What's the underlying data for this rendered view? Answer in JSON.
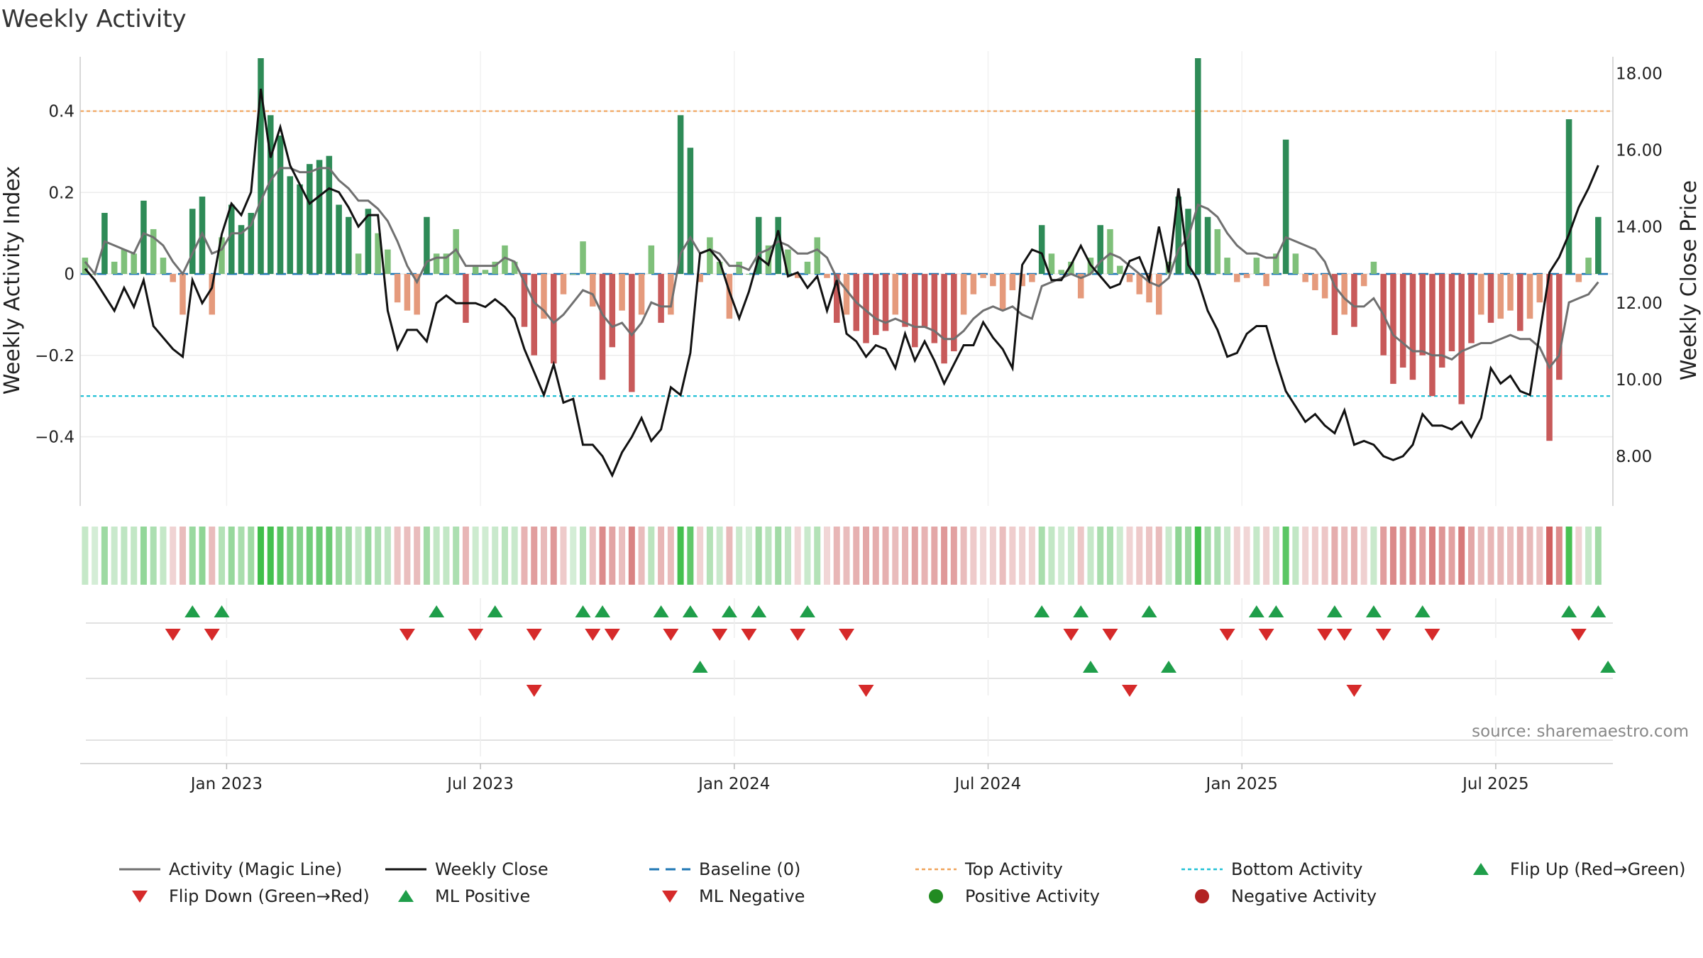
{
  "chart_data": {
    "type": "bar",
    "title": "Weekly Activity",
    "ylabel_left": "Weekly Activity Index",
    "ylabel_right": "Weekly Close Price",
    "source": "source: sharemaestro.com",
    "ylim_left": [
      -0.57,
      0.53
    ],
    "ylim_right": [
      6.7,
      18.4
    ],
    "yticks_left": [
      {
        "v": 0.4,
        "label": "0.4"
      },
      {
        "v": 0.2,
        "label": "0.2"
      },
      {
        "v": 0,
        "label": "0"
      },
      {
        "v": -0.2,
        "label": "−0.2"
      },
      {
        "v": -0.4,
        "label": "−0.4"
      }
    ],
    "yticks_right": [
      {
        "v": 18,
        "label": "18.00"
      },
      {
        "v": 16,
        "label": "16.00"
      },
      {
        "v": 14,
        "label": "14.00"
      },
      {
        "v": 12,
        "label": "12.00"
      },
      {
        "v": 10,
        "label": "10.00"
      },
      {
        "v": 8,
        "label": "8.00"
      }
    ],
    "week_range": [
      -0.5,
      156.5
    ],
    "xticks": [
      {
        "w": 14.5,
        "label": "Jan 2023"
      },
      {
        "w": 40.5,
        "label": "Jul 2023"
      },
      {
        "w": 66.5,
        "label": "Jan 2024"
      },
      {
        "w": 92.5,
        "label": "Jul 2024"
      },
      {
        "w": 118.5,
        "label": "Jan 2025"
      },
      {
        "w": 144.5,
        "label": "Jul 2025"
      }
    ],
    "top_activity": 0.4,
    "bottom_activity": -0.3,
    "baseline": 0,
    "activity": [
      0.04,
      0,
      0.15,
      0.03,
      0.06,
      0.05,
      0.18,
      0.11,
      0.04,
      -0.02,
      -0.1,
      0.16,
      0.19,
      -0.1,
      0.09,
      0.17,
      0.12,
      0.15,
      0.53,
      0.39,
      0.34,
      0.24,
      0.22,
      0.27,
      0.28,
      0.29,
      0.17,
      0.14,
      0.05,
      0.16,
      0.1,
      0.06,
      -0.07,
      -0.09,
      -0.1,
      0.14,
      0.05,
      0.05,
      0.11,
      -0.12,
      0.02,
      0.01,
      0.03,
      0.07,
      0.03,
      -0.13,
      -0.2,
      -0.11,
      -0.22,
      -0.05,
      0,
      0.08,
      -0.08,
      -0.26,
      -0.18,
      -0.09,
      -0.29,
      -0.1,
      0.07,
      -0.12,
      -0.1,
      0.39,
      0.31,
      -0.02,
      0.09,
      0.03,
      -0.11,
      0.03,
      0,
      0.14,
      0.07,
      0.14,
      0.06,
      -0.01,
      0.03,
      0.09,
      -0.01,
      -0.12,
      -0.1,
      -0.14,
      -0.17,
      -0.15,
      -0.14,
      -0.1,
      -0.13,
      -0.18,
      -0.13,
      -0.17,
      -0.22,
      -0.19,
      -0.1,
      -0.05,
      -0.01,
      -0.03,
      -0.09,
      -0.04,
      -0.03,
      -0.02,
      0.12,
      0.05,
      0.01,
      0.03,
      -0.06,
      0.04,
      0.12,
      0.11,
      0.02,
      -0.02,
      -0.05,
      -0.07,
      -0.1,
      0.03,
      0.19,
      0.16,
      0.53,
      0.14,
      0.11,
      0.04,
      -0.02,
      -0.01,
      0.04,
      -0.03,
      0.05,
      0.33,
      0.05,
      -0.02,
      -0.04,
      -0.06,
      -0.15,
      -0.1,
      -0.13,
      -0.03,
      0.03,
      -0.2,
      -0.27,
      -0.23,
      -0.26,
      -0.2,
      -0.3,
      -0.23,
      -0.19,
      -0.32,
      -0.17,
      -0.1,
      -0.12,
      -0.11,
      -0.09,
      -0.14,
      -0.11,
      -0.07,
      -0.41,
      -0.26,
      0.38,
      -0.02,
      0.04,
      0.14
    ],
    "magic_line": [
      0.03,
      0,
      0.08,
      0.07,
      0.06,
      0.05,
      0.1,
      0.09,
      0.07,
      0.03,
      0,
      0.05,
      0.1,
      0.05,
      0.06,
      0.1,
      0.1,
      0.12,
      0.18,
      0.23,
      0.26,
      0.26,
      0.25,
      0.25,
      0.26,
      0.26,
      0.23,
      0.21,
      0.18,
      0.18,
      0.16,
      0.13,
      0.08,
      0.02,
      -0.02,
      0.03,
      0.04,
      0.04,
      0.06,
      0.02,
      0.02,
      0.02,
      0.02,
      0.04,
      0.03,
      -0.02,
      -0.07,
      -0.09,
      -0.12,
      -0.1,
      -0.07,
      -0.04,
      -0.05,
      -0.1,
      -0.13,
      -0.12,
      -0.15,
      -0.12,
      -0.07,
      -0.08,
      -0.08,
      0.05,
      0.09,
      0.05,
      0.06,
      0.05,
      0.02,
      0.02,
      0.01,
      0.05,
      0.06,
      0.08,
      0.07,
      0.05,
      0.05,
      0.06,
      0.04,
      -0.01,
      -0.04,
      -0.07,
      -0.09,
      -0.11,
      -0.12,
      -0.11,
      -0.12,
      -0.13,
      -0.13,
      -0.14,
      -0.16,
      -0.16,
      -0.14,
      -0.11,
      -0.09,
      -0.08,
      -0.09,
      -0.08,
      -0.1,
      -0.11,
      -0.03,
      -0.02,
      -0.01,
      0,
      -0.01,
      0,
      0.03,
      0.05,
      0.04,
      0.02,
      0,
      -0.02,
      -0.03,
      -0.01,
      0.06,
      0.09,
      0.17,
      0.16,
      0.14,
      0.1,
      0.07,
      0.05,
      0.05,
      0.04,
      0.04,
      0.09,
      0.08,
      0.07,
      0.06,
      0.03,
      -0.03,
      -0.06,
      -0.08,
      -0.08,
      -0.06,
      -0.1,
      -0.15,
      -0.17,
      -0.19,
      -0.19,
      -0.2,
      -0.2,
      -0.21,
      -0.19,
      -0.18,
      -0.17,
      -0.17,
      -0.16,
      -0.15,
      -0.16,
      -0.16,
      -0.18,
      -0.23,
      -0.2,
      -0.07,
      -0.06,
      -0.05,
      -0.02
    ],
    "weekly_close": [
      12.9,
      12.6,
      12.2,
      11.8,
      12.4,
      11.9,
      12.6,
      11.4,
      11.1,
      10.8,
      10.6,
      12.6,
      12.0,
      12.4,
      13.8,
      14.6,
      14.3,
      14.9,
      17.6,
      15.8,
      16.6,
      15.6,
      15.1,
      14.6,
      14.8,
      15.0,
      14.9,
      14.5,
      14.0,
      14.3,
      14.3,
      11.8,
      10.8,
      11.3,
      11.3,
      11.0,
      12.0,
      12.2,
      12.0,
      12.0,
      12.0,
      11.9,
      12.1,
      11.9,
      11.6,
      10.8,
      10.2,
      9.6,
      10.4,
      9.4,
      9.5,
      8.3,
      8.3,
      8.0,
      7.5,
      8.1,
      8.5,
      9.0,
      8.4,
      8.7,
      9.8,
      9.6,
      10.7,
      13.3,
      13.4,
      13.1,
      12.3,
      11.6,
      12.3,
      13.2,
      13.0,
      13.9,
      12.7,
      12.8,
      12.4,
      12.7,
      11.8,
      12.6,
      11.2,
      11.0,
      10.6,
      10.9,
      10.8,
      10.3,
      11.2,
      10.5,
      11.0,
      10.5,
      9.9,
      10.4,
      10.9,
      10.9,
      11.5,
      11.1,
      10.8,
      10.3,
      13.0,
      13.4,
      13.3,
      12.6,
      12.6,
      13.0,
      13.5,
      13.0,
      12.7,
      12.4,
      12.5,
      13.1,
      13.2,
      12.6,
      14.0,
      12.8,
      15.0,
      13.0,
      12.6,
      11.8,
      11.3,
      10.6,
      10.7,
      11.2,
      11.4,
      11.4,
      10.5,
      9.7,
      9.3,
      8.9,
      9.1,
      8.8,
      8.6,
      9.2,
      8.3,
      8.4,
      8.3,
      8.0,
      7.9,
      8.0,
      8.3,
      9.1,
      8.8,
      8.8,
      8.7,
      8.9,
      8.5,
      9.0,
      10.3,
      9.9,
      10.1,
      9.7,
      9.6,
      11.2,
      12.8,
      13.2,
      13.8,
      14.5,
      15.0,
      15.6
    ],
    "flip_up_weeks": [
      11,
      14,
      36,
      42,
      51,
      53,
      59,
      62,
      66,
      69,
      74,
      98,
      102,
      109,
      120,
      122,
      128,
      132,
      137,
      152,
      155
    ],
    "flip_down_weeks": [
      9,
      13,
      33,
      40,
      46,
      52,
      54,
      60,
      65,
      68,
      73,
      78,
      101,
      105,
      117,
      121,
      127,
      129,
      133,
      138,
      153
    ],
    "ml_positive_weeks": [
      63,
      103,
      111,
      156
    ],
    "ml_negative_weeks": [
      46,
      80,
      107,
      130
    ],
    "colors": {
      "strong_positive": "#2e8b57",
      "weak_positive": "#7fc07a",
      "strong_negative": "#c85a5a",
      "weak_negative": "#e59a7c",
      "magic_line": "#707070",
      "weekly_close": "#111111",
      "baseline": "#1f77b4",
      "top_activity": "#f0a35a",
      "bottom_activity": "#22c1d6",
      "flip_up": "#1f9e4a",
      "flip_down": "#d62a2a",
      "positive_activity": "#228b22",
      "negative_activity": "#b22222"
    },
    "legend": [
      {
        "key": "magic",
        "label": "Activity (Magic Line)"
      },
      {
        "key": "close",
        "label": "Weekly Close"
      },
      {
        "key": "base",
        "label": "Baseline (0)"
      },
      {
        "key": "top",
        "label": "Top Activity"
      },
      {
        "key": "bottom",
        "label": "Bottom Activity"
      },
      {
        "key": "flipup",
        "label": "Flip Up (Red→Green)"
      },
      {
        "key": "flipdown",
        "label": "Flip Down (Green→Red)"
      },
      {
        "key": "mlpos",
        "label": "ML Positive"
      },
      {
        "key": "mlneg",
        "label": "ML Negative"
      },
      {
        "key": "posact",
        "label": "Positive Activity"
      },
      {
        "key": "negact",
        "label": "Negative Activity"
      }
    ]
  }
}
